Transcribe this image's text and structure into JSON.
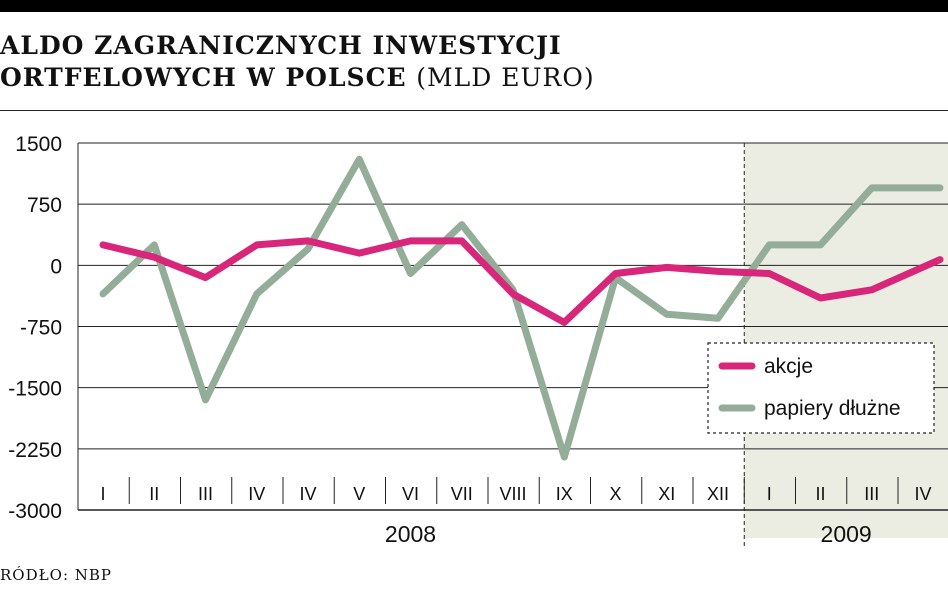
{
  "title": {
    "line1": "ALDO ZAGRANICZNYCH INWESTYCJI",
    "line2": "ORTFELOWYCH W POLSCE",
    "unit": "(MLD EURO)"
  },
  "source": "RÓDŁO: NBP",
  "colors": {
    "akcje": "#d8277a",
    "papiery": "#93ad98",
    "shade": "#ecede2",
    "grid": "#222222"
  },
  "chart_data": {
    "type": "line",
    "categories": [
      "I",
      "II",
      "III",
      "IV",
      "IV",
      "V",
      "VI",
      "VII",
      "VIII",
      "IX",
      "X",
      "XI",
      "XII",
      "I",
      "II",
      "III",
      "IV"
    ],
    "years": [
      {
        "label": "2008",
        "start": 0,
        "end": 12
      },
      {
        "label": "2009",
        "start": 13,
        "end": 16
      }
    ],
    "shaded_from_index": 13,
    "yticks": [
      1500,
      750,
      0,
      -750,
      -1500,
      -2250,
      -3000
    ],
    "ytick_labels": [
      "1500",
      "750",
      "0",
      "-750",
      "-1500",
      "-2250",
      "-3000"
    ],
    "ylim": [
      -3000,
      1500
    ],
    "grid": true,
    "legend_position": "right",
    "series": [
      {
        "name": "akcje",
        "values": [
          250,
          100,
          -150,
          250,
          300,
          150,
          300,
          300,
          -350,
          -700,
          -100,
          -25,
          -75,
          -100,
          -400,
          -300,
          70
        ]
      },
      {
        "name": "papiery dłużne",
        "values": [
          -350,
          250,
          -1650,
          -350,
          200,
          1300,
          -100,
          500,
          -300,
          -2350,
          -150,
          -600,
          -650,
          250,
          250,
          950,
          950
        ]
      }
    ]
  }
}
